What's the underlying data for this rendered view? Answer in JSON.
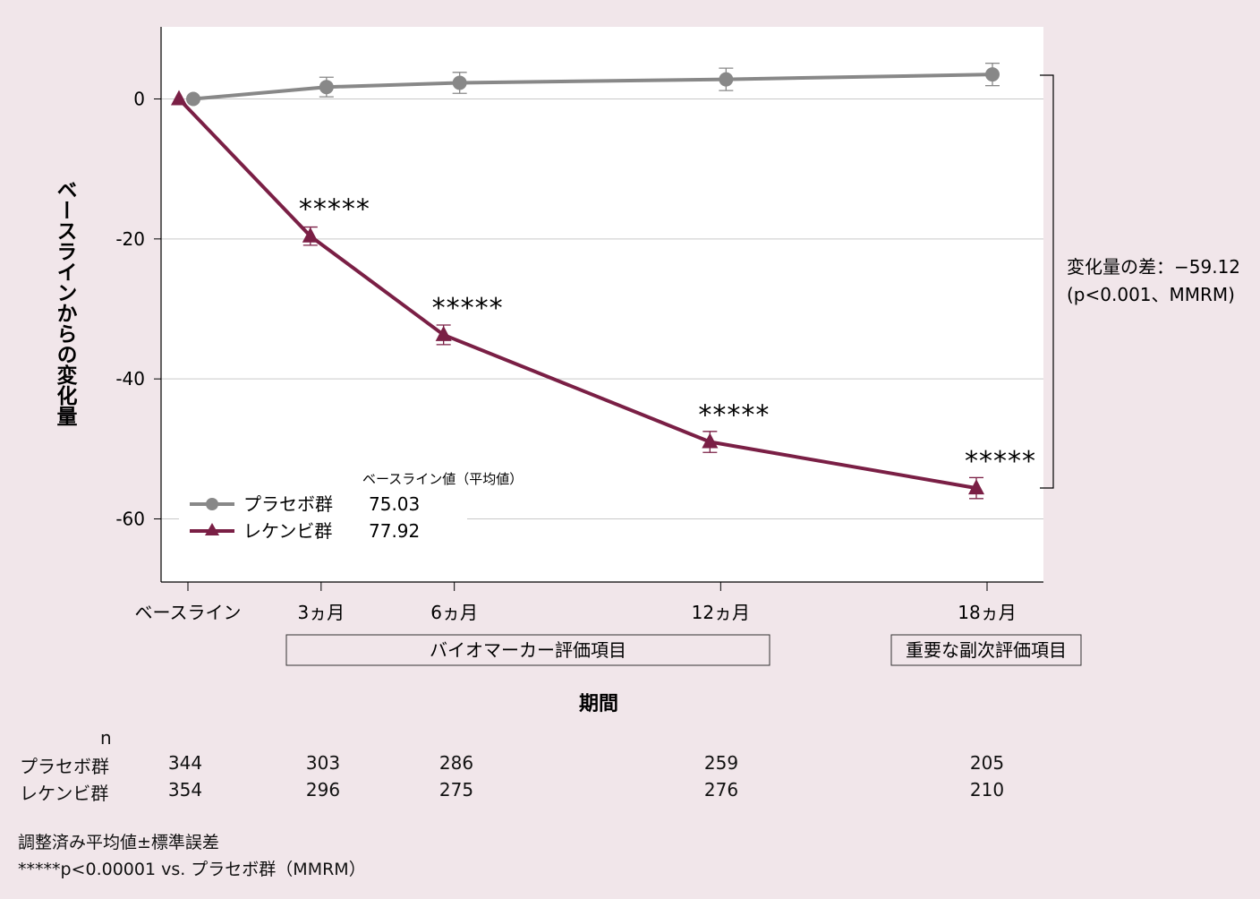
{
  "chart_data": {
    "type": "line",
    "ylabel": "ベースラインからの変化量",
    "xlabel": "期間",
    "ylim": [
      -68,
      10
    ],
    "yticks": [
      0,
      -20,
      -40,
      -60
    ],
    "categories": [
      "ベースライン",
      "3ヵ月",
      "6ヵ月",
      "12ヵ月",
      "18ヵ月"
    ],
    "x_months": [
      0,
      3,
      6,
      12,
      18
    ],
    "grid": true,
    "series": [
      {
        "name": "プラセボ群",
        "baseline_mean": "75.03",
        "color": "#888888",
        "marker": "circle",
        "values": [
          0,
          1.7,
          2.3,
          2.8,
          3.5
        ],
        "errors": [
          0,
          1.4,
          1.5,
          1.6,
          1.6
        ]
      },
      {
        "name": "レケンビ群",
        "baseline_mean": "77.92",
        "color": "#7a1f45",
        "marker": "triangle",
        "values": [
          0,
          -19.6,
          -33.7,
          -49.0,
          -55.6
        ],
        "errors": [
          0,
          1.3,
          1.4,
          1.5,
          1.5
        ]
      }
    ],
    "significance": [
      "",
      "*****",
      "*****",
      "*****",
      "*****"
    ],
    "legend_title": "ベースライン値（平均値）",
    "legend_position": "bottom-left",
    "difference_annotation": {
      "line1": "変化量の差：−59.12",
      "line2": "(p<0.001、MMRM)"
    },
    "endpoint_boxes": [
      {
        "label": "バイオマーカー評価項目"
      },
      {
        "label": "重要な副次評価項目"
      }
    ]
  },
  "n_table": {
    "header": "n",
    "rows": [
      {
        "group": "プラセボ群",
        "values": [
          "344",
          "303",
          "286",
          "259",
          "205"
        ]
      },
      {
        "group": "レケンビ群",
        "values": [
          "354",
          "296",
          "275",
          "276",
          "210"
        ]
      }
    ]
  },
  "footnotes": {
    "line1": "調整済み平均値±標準誤差",
    "line2": "*****p<0.00001 vs. プラセボ群（MMRM）"
  }
}
